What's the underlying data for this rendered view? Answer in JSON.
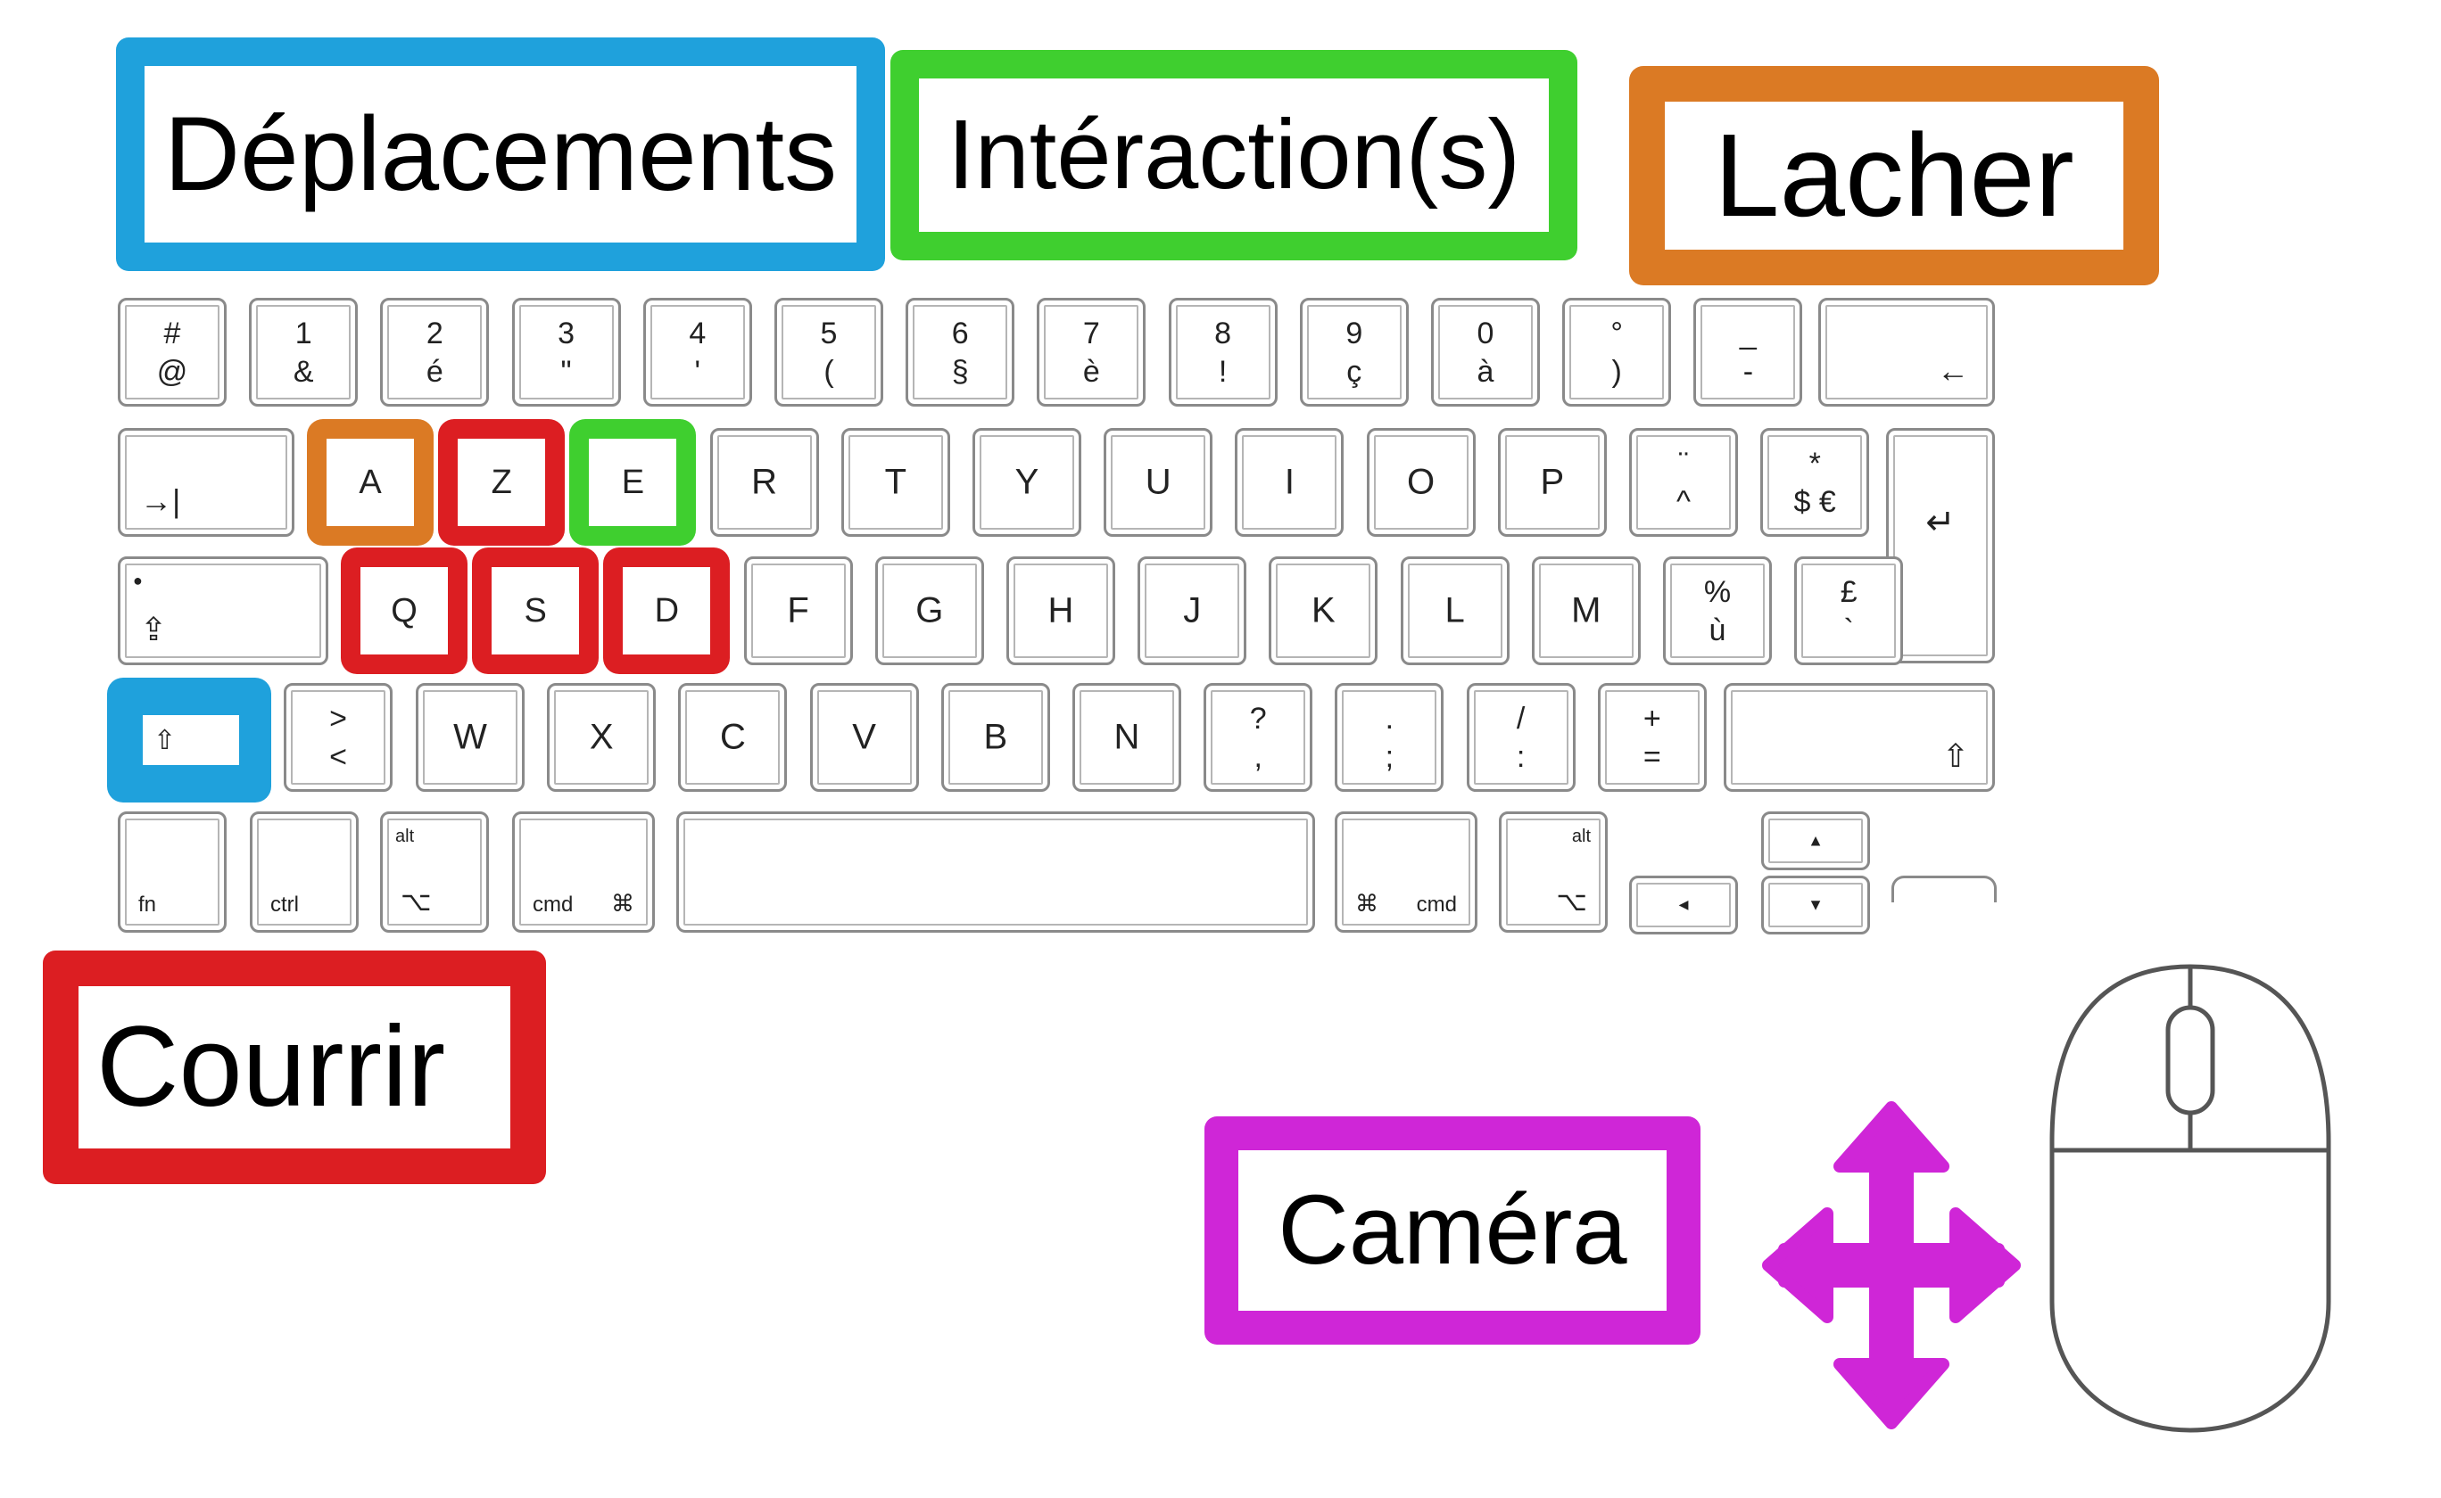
{
  "colors": {
    "blue": "#1fa1dc",
    "green": "#3fcf2f",
    "orange": "#db7a24",
    "red": "#dc1e22",
    "magenta": "#cf26d7"
  },
  "labels": {
    "deplacements": "Déplacements",
    "interactions": "Intéraction(s)",
    "lacher": "Lacher",
    "courrir": "Courrir",
    "camera": "Caméra"
  },
  "keyboard": {
    "row1": [
      {
        "top": "#",
        "bot": "@"
      },
      {
        "top": "1",
        "bot": "&"
      },
      {
        "top": "2",
        "bot": "é"
      },
      {
        "top": "3",
        "bot": "\""
      },
      {
        "top": "4",
        "bot": "'"
      },
      {
        "top": "5",
        "bot": "("
      },
      {
        "top": "6",
        "bot": "§"
      },
      {
        "top": "7",
        "bot": "è"
      },
      {
        "top": "8",
        "bot": "!"
      },
      {
        "top": "9",
        "bot": "ç"
      },
      {
        "top": "0",
        "bot": "à"
      },
      {
        "top": "°",
        "bot": ")"
      },
      {
        "top": "_",
        "bot": "-"
      }
    ],
    "backspace": "←",
    "tab": "→|",
    "row2": [
      "A",
      "Z",
      "E",
      "R",
      "T",
      "Y",
      "U",
      "I",
      "O",
      "P"
    ],
    "row2_extra": [
      {
        "top": "¨",
        "bot": "^"
      },
      {
        "top": "*",
        "bot": "$ €"
      }
    ],
    "enter": "↵",
    "capslock": "⇪",
    "row3": [
      "Q",
      "S",
      "D",
      "F",
      "G",
      "H",
      "J",
      "K",
      "L",
      "M"
    ],
    "row3_extra": [
      {
        "top": "%",
        "bot": "ù"
      },
      {
        "top": "£",
        "bot": "`"
      }
    ],
    "shift_left": "⇧",
    "row4_first": {
      "top": ">",
      "bot": "<"
    },
    "row4": [
      "W",
      "X",
      "C",
      "V",
      "B",
      "N"
    ],
    "row4_extra": [
      {
        "top": "?",
        "bot": ","
      },
      {
        "top": ".",
        "bot": ";"
      },
      {
        "top": "/",
        "bot": ":"
      },
      {
        "top": "+",
        "bot": "="
      }
    ],
    "shift_right": "⇧",
    "bottom": {
      "fn": "fn",
      "ctrl": "ctrl",
      "alt": "alt",
      "alt_symbol": "⌥",
      "cmd": "cmd",
      "cmd_symbol": "⌘",
      "arrow_up": "▲",
      "arrow_down": "▼",
      "arrow_left": "◄"
    }
  },
  "icons": {
    "move": "move-arrows-icon",
    "mouse": "mouse-icon"
  }
}
